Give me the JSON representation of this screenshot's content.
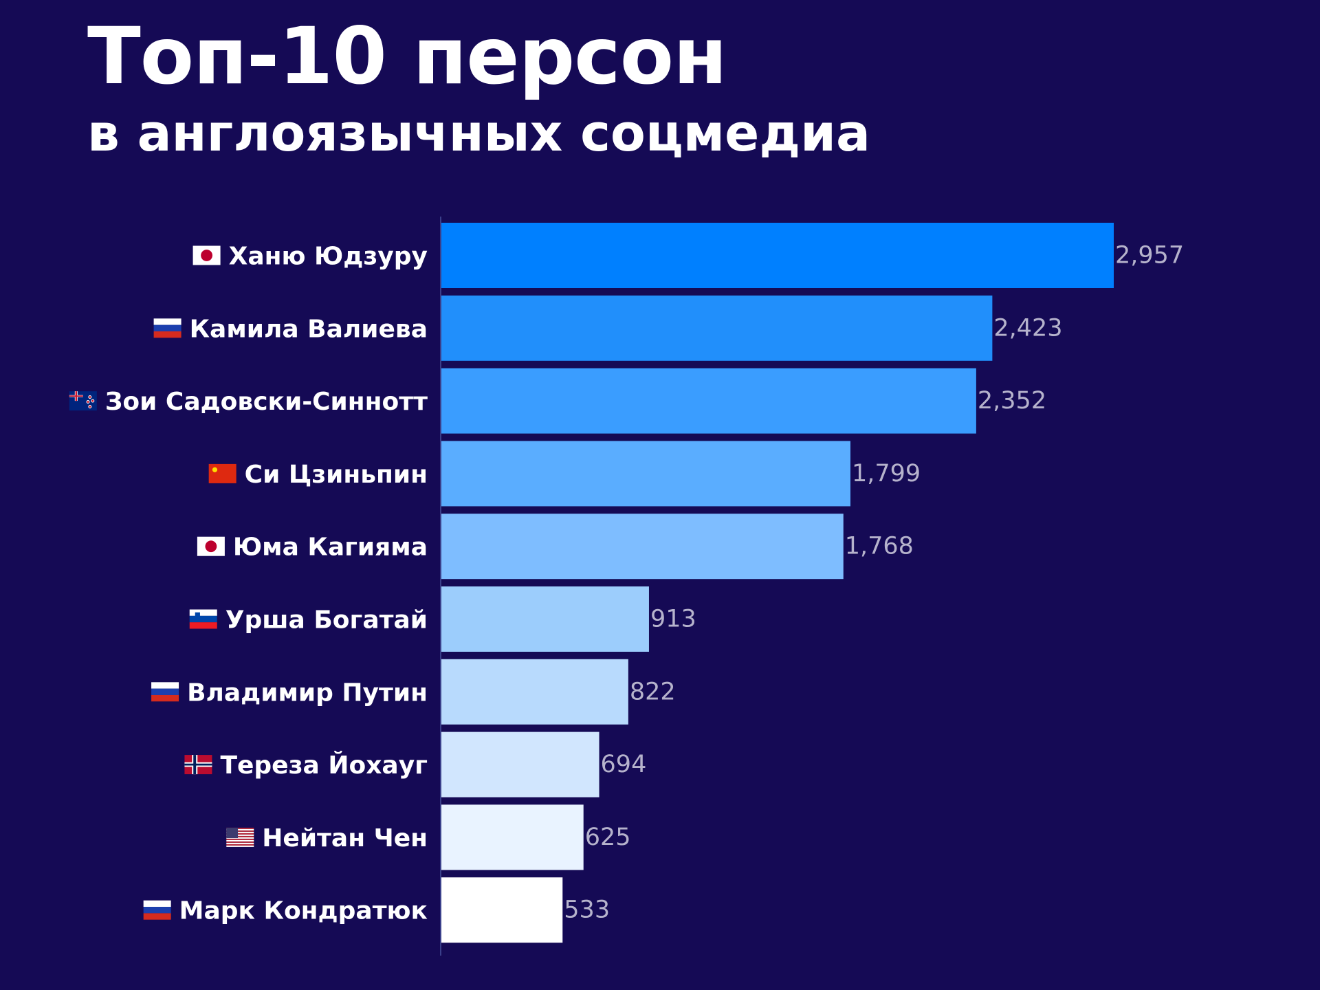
{
  "title": "Топ-10 персон",
  "subtitle": "в англоязычных соцмедиа",
  "colors": {
    "background": "#150a55",
    "axis": "#3a3f8a",
    "value_text": "#b6b3cc",
    "bar_gradient": [
      "#0080ff",
      "#218ffb",
      "#3a9dff",
      "#5aadff",
      "#7ebdff",
      "#9ccdfc",
      "#b8dafd",
      "#d1e6fe",
      "#e9f3ff",
      "#ffffff"
    ]
  },
  "chart_data": {
    "type": "bar",
    "orientation": "horizontal",
    "title": "Топ-10 персон",
    "subtitle": "в англоязычных соцмедиа",
    "categories": [
      "Ханю Юдзуру",
      "Камила Валиева",
      "Зои Садовски-Синнотт",
      "Си Цзиньпин",
      "Юма Кагияма",
      "Урша Богатай",
      "Владимир Путин",
      "Тереза Йохауг",
      "Нейтан Чен",
      "Марк Кондратюк"
    ],
    "flags": [
      "jp",
      "ru",
      "nz",
      "cn",
      "jp",
      "si",
      "ru",
      "no",
      "us",
      "ru"
    ],
    "values": [
      2957,
      2423,
      2352,
      1799,
      1768,
      913,
      822,
      694,
      625,
      533
    ],
    "value_labels": [
      "2,957",
      "2,423",
      "2,352",
      "1,799",
      "1,768",
      "913",
      "822",
      "694",
      "625",
      "533"
    ],
    "xlim": [
      0,
      2957
    ],
    "grid": false,
    "legend": "none"
  }
}
